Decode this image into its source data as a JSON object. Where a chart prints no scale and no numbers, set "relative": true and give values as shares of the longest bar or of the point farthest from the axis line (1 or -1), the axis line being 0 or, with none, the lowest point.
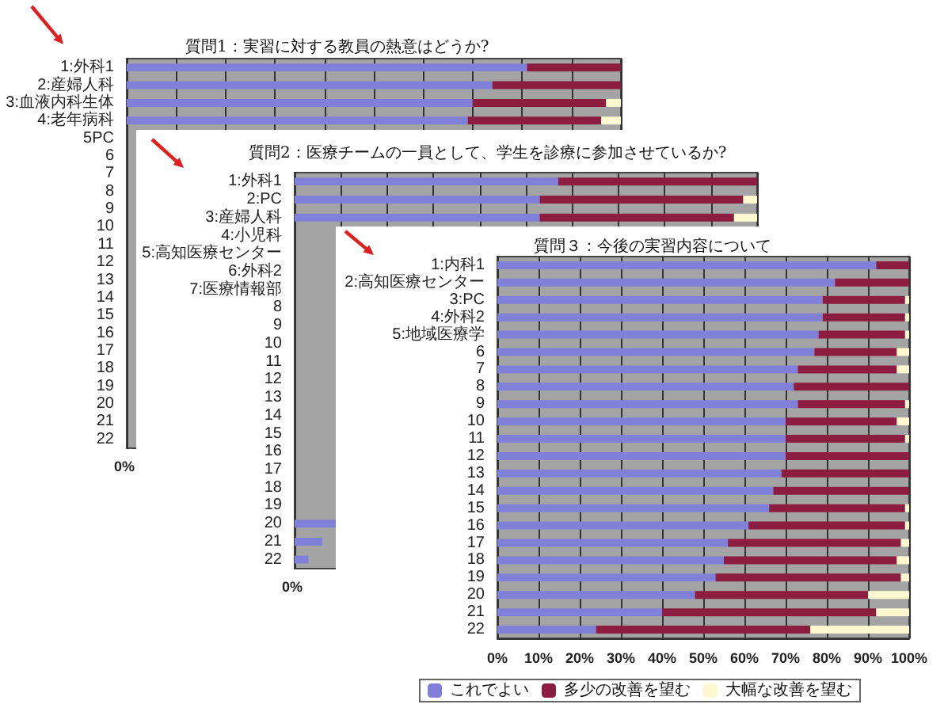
{
  "chart_data": [
    {
      "type": "bar",
      "orientation": "horizontal",
      "stacked": true,
      "relative": true,
      "title": "質問1：実習に対する教員の熱意はどうか?",
      "categories": [
        "1:外科1",
        "2:産婦人科",
        "3:血液内科生体",
        "4:老年病科",
        "5PC",
        "6",
        "7",
        "8",
        "9",
        "10",
        "11",
        "12",
        "13",
        "14",
        "15",
        "16",
        "17",
        "18",
        "19",
        "20",
        "21",
        "22"
      ],
      "series": [
        {
          "color": "#8080d8",
          "values": [
            0.81,
            0.74,
            0.7,
            0.69,
            null,
            null,
            null,
            null,
            null,
            null,
            null,
            null,
            null,
            null,
            null,
            null,
            null,
            null,
            null,
            null,
            null,
            null
          ]
        },
        {
          "color": "#8c1c40",
          "values": [
            0.19,
            0.26,
            0.27,
            0.27,
            null,
            null,
            null,
            null,
            null,
            null,
            null,
            null,
            null,
            null,
            null,
            null,
            null,
            null,
            null,
            null,
            null,
            null
          ]
        },
        {
          "color": "#fdf8d0",
          "values": [
            0,
            0,
            0.03,
            0.04,
            null,
            null,
            null,
            null,
            null,
            null,
            null,
            null,
            null,
            null,
            null,
            null,
            null,
            null,
            null,
            null,
            null,
            null
          ]
        }
      ],
      "annotations": [
        "0%"
      ],
      "grid": "x",
      "legend": false
    },
    {
      "type": "bar",
      "orientation": "horizontal",
      "stacked": true,
      "relative": true,
      "title": "質問2：医療チームの一員として、学生を診療に参加させているか?",
      "categories": [
        "1:外科1",
        "2:PC",
        "3:産婦人科",
        "4:小児科",
        "5:高知医療センター",
        "6:外科2",
        "7:医療情報部",
        "8",
        "9",
        "10",
        "11",
        "12",
        "13",
        "14",
        "15",
        "16",
        "17",
        "18",
        "19",
        "20",
        "21",
        "22"
      ],
      "series": [
        {
          "color": "#8080d8",
          "values": [
            0.57,
            0.53,
            0.53,
            null,
            null,
            null,
            null,
            null,
            null,
            null,
            null,
            null,
            null,
            null,
            null,
            null,
            null,
            null,
            null,
            0.09,
            0.06,
            0.03
          ]
        },
        {
          "color": "#8c1c40",
          "values": [
            0.43,
            0.44,
            0.42,
            null,
            null,
            null,
            null,
            null,
            null,
            null,
            null,
            null,
            null,
            null,
            null,
            null,
            null,
            null,
            null,
            null,
            null,
            null
          ]
        },
        {
          "color": "#fdf8d0",
          "values": [
            0,
            0.03,
            0.05,
            null,
            null,
            null,
            null,
            null,
            null,
            null,
            null,
            null,
            null,
            null,
            null,
            null,
            null,
            null,
            null,
            null,
            null,
            null
          ]
        }
      ],
      "annotations": [
        "0%"
      ],
      "grid": "x",
      "legend": false
    },
    {
      "type": "bar",
      "orientation": "horizontal",
      "stacked": true,
      "title": "質問３：今後の実習内容について",
      "categories": [
        "1:内科1",
        "2:高知医療センター",
        "3:PC",
        "4:外科2",
        "5:地域医療学",
        "6",
        "7",
        "8",
        "9",
        "10",
        "11",
        "12",
        "13",
        "14",
        "15",
        "16",
        "17",
        "18",
        "19",
        "20",
        "21",
        "22"
      ],
      "series": [
        {
          "name": "これでよい",
          "color": "#8080d8",
          "values": [
            92,
            82,
            79,
            79,
            78,
            77,
            73,
            72,
            73,
            70,
            70,
            70,
            69,
            67,
            66,
            61,
            56,
            55,
            53,
            48,
            40,
            24
          ]
        },
        {
          "name": "多少の改善を望む",
          "color": "#8c1c40",
          "values": [
            8,
            18,
            20,
            20,
            21,
            20,
            24,
            28,
            26,
            27,
            29,
            30,
            31,
            33,
            33,
            38,
            42,
            42,
            45,
            42,
            52,
            52
          ]
        },
        {
          "name": "大幅な改善を望む",
          "color": "#fdf8d0",
          "values": [
            0,
            0,
            1,
            1,
            1,
            3,
            3,
            0,
            1,
            3,
            1,
            0,
            0,
            0,
            1,
            1,
            2,
            3,
            2,
            10,
            8,
            24
          ]
        }
      ],
      "xlim": [
        0,
        100
      ],
      "xticks": [
        {
          "value": 0,
          "label": "0%"
        },
        {
          "value": 10,
          "label": "10%"
        },
        {
          "value": 20,
          "label": "20%"
        },
        {
          "value": 30,
          "label": "30%"
        },
        {
          "value": 40,
          "label": "40%"
        },
        {
          "value": 50,
          "label": "50%"
        },
        {
          "value": 60,
          "label": "60%"
        },
        {
          "value": 70,
          "label": "70%"
        },
        {
          "value": 80,
          "label": "80%"
        },
        {
          "value": 90,
          "label": "90%"
        },
        {
          "value": 100,
          "label": "100%"
        }
      ],
      "grid": "x",
      "legend": "bottom"
    }
  ]
}
